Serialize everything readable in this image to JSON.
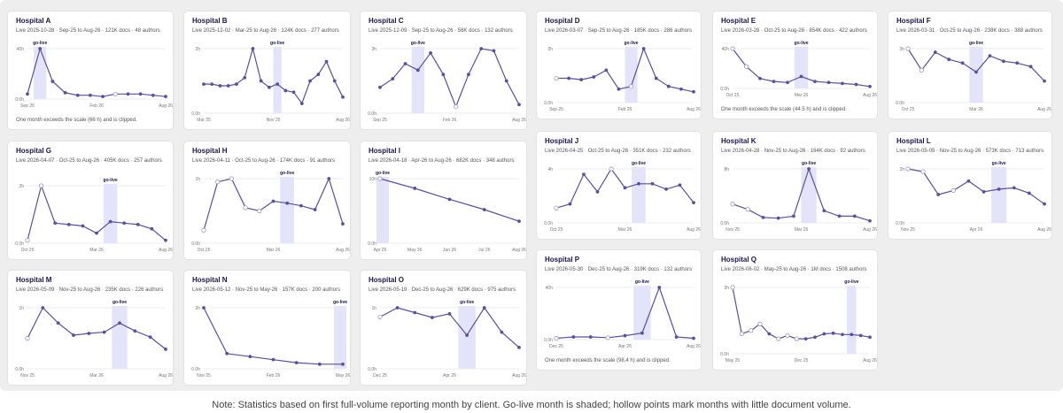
{
  "footnote": "Note: Statistics based on first full-volume reporting month by client. Go-live month is shaded; hollow points mark months with little document volume.",
  "golive_label": "go-live",
  "colors": {
    "line": "#5a4fa3",
    "shade": "#e3e3fa",
    "grid": "#dedede",
    "text": "#1a1450"
  },
  "chart_data": [
    {
      "type": "line",
      "title": "Hospital A",
      "subtitle": "Live 2025-10-28 · Sep-25 to Aug-26 · 121K docs · 48 authors",
      "note": "One month exceeds the scale (66 h) and is clipped.",
      "x": [
        "Sep-25",
        "Oct-25",
        "Nov-25",
        "Dec-25",
        "Jan-26",
        "Feb-26",
        "Mar-26",
        "Apr-26",
        "May-26",
        "Jun-26",
        "Jul-26",
        "Aug-26"
      ],
      "xticks": [
        "Sep 25",
        "Feb 26",
        "Aug 26"
      ],
      "yticks": [
        "0.0h",
        "40h"
      ],
      "ylim": [
        0,
        40
      ],
      "golive_index": 1,
      "values": [
        4,
        40,
        14,
        5,
        3,
        3,
        2,
        4,
        4,
        4,
        3,
        2
      ],
      "hollow": [
        7
      ]
    },
    {
      "type": "line",
      "title": "Hospital B",
      "subtitle": "Live 2025-12-02 · Mar-25 to Aug-26 · 124K docs · 277 authors",
      "note": "",
      "x": [
        "Mar-25",
        "Apr-25",
        "May-25",
        "Jun-25",
        "Jul-25",
        "Aug-25",
        "Sep-25",
        "Oct-25",
        "Nov-25",
        "Dec-25",
        "Jan-26",
        "Feb-26",
        "Mar-26",
        "Apr-26",
        "May-26",
        "Jun-26",
        "Jul-26",
        "Aug-26"
      ],
      "xticks": [
        "Mar 25",
        "Nov 25",
        "Aug 26"
      ],
      "yticks": [
        "0.0h",
        "2h"
      ],
      "ylim": [
        0,
        2
      ],
      "golive_index": 9,
      "values": [
        0.9,
        0.9,
        0.85,
        0.85,
        0.9,
        1.1,
        2.0,
        1.0,
        0.8,
        0.9,
        0.7,
        0.65,
        0.3,
        1.0,
        1.2,
        1.6,
        1.0,
        0.5
      ],
      "hollow": []
    },
    {
      "type": "line",
      "title": "Hospital C",
      "subtitle": "Live 2025-12-09 · Sep-25 to Aug-26 · 56K docs · 132 authors",
      "note": "",
      "x": [
        "Sep-25",
        "Oct-25",
        "Nov-25",
        "Dec-25",
        "Jan-26",
        "Feb-26",
        "Mar-26",
        "Apr-26",
        "May-26",
        "Jun-26",
        "Jul-26",
        "Aug-26"
      ],
      "xticks": [
        "Sep 25",
        "Feb 26",
        "Aug 26"
      ],
      "yticks": [
        "0.0h",
        "3h"
      ],
      "ylim": [
        0,
        3
      ],
      "golive_index": 3,
      "values": [
        1.2,
        1.6,
        2.3,
        2.0,
        2.8,
        1.8,
        0.3,
        1.8,
        3.0,
        2.9,
        1.5,
        0.4
      ],
      "hollow": [
        6
      ]
    },
    {
      "type": "line",
      "title": "Hospital D",
      "subtitle": "Live 2026-03-07 · Sep-25 to Aug-26 · 185K docs · 286 authors",
      "note": "",
      "x": [
        "Sep-25",
        "Oct-25",
        "Nov-25",
        "Dec-25",
        "Jan-26",
        "Feb-26",
        "Mar-26",
        "Apr-26",
        "May-26",
        "Jun-26",
        "Jul-26",
        "Aug-26"
      ],
      "xticks": [
        "Sep 25",
        "Feb 26",
        "Aug 26"
      ],
      "yticks": [
        "0.0h",
        "2h"
      ],
      "ylim": [
        0,
        2
      ],
      "golive_index": 6,
      "values": [
        0.9,
        0.9,
        0.85,
        0.95,
        1.2,
        0.5,
        0.6,
        2.0,
        0.9,
        0.6,
        0.5,
        0.4
      ],
      "hollow": [
        0,
        6
      ]
    },
    {
      "type": "line",
      "title": "Hospital E",
      "subtitle": "Live 2026-03-28 · Oct-25 to Aug-26 · 854K docs · 422 authors",
      "note": "One month exceeds the scale (44.5 h) and is clipped.",
      "x": [
        "Oct-25",
        "Nov-25",
        "Dec-25",
        "Jan-26",
        "Feb-26",
        "Mar-26",
        "Apr-26",
        "May-26",
        "Jun-26",
        "Jul-26",
        "Aug-26"
      ],
      "xticks": [
        "Oct 25",
        "Mar 26",
        "Aug 26"
      ],
      "yticks": [
        "0.0h",
        "40h"
      ],
      "ylim": [
        0,
        40
      ],
      "golive_index": 5,
      "values": [
        40,
        22,
        10,
        7,
        6,
        12,
        7,
        6,
        5,
        4,
        2
      ],
      "hollow": [
        0,
        1
      ]
    },
    {
      "type": "line",
      "title": "Hospital F",
      "subtitle": "Live 2026-03-31 · Oct-25 to Aug-26 · 238K docs · 388 authors",
      "note": "",
      "x": [
        "Oct-25",
        "Nov-25",
        "Dec-25",
        "Jan-26",
        "Feb-26",
        "Mar-26",
        "Apr-26",
        "May-26",
        "Jun-26",
        "Jul-26",
        "Aug-26"
      ],
      "xticks": [
        "Oct 25",
        "Mar 26",
        "Aug 26"
      ],
      "yticks": [
        "0.0h",
        "3h"
      ],
      "ylim": [
        0,
        3
      ],
      "golive_index": 5,
      "values": [
        3.0,
        1.8,
        2.8,
        2.4,
        2.2,
        1.7,
        2.6,
        2.3,
        2.2,
        2.0,
        1.2
      ],
      "hollow": [
        0,
        1
      ]
    },
    {
      "type": "line",
      "title": "Hospital G",
      "subtitle": "Live 2026-04-07 · Oct-25 to Aug-26 · 405K docs · 257 authors",
      "note": "",
      "x": [
        "Oct-25",
        "Nov-25",
        "Dec-25",
        "Jan-26",
        "Feb-26",
        "Mar-26",
        "Apr-26",
        "May-26",
        "Jun-26",
        "Jul-26",
        "Aug-26"
      ],
      "xticks": [
        "Oct 25",
        "Mar 26",
        "Aug 26"
      ],
      "yticks": [
        "0.0h",
        "2h"
      ],
      "ylim": [
        0,
        2
      ],
      "golive_index": 6,
      "values": [
        0.1,
        2.0,
        0.7,
        0.65,
        0.6,
        0.35,
        0.75,
        0.7,
        0.65,
        0.5,
        0.1
      ],
      "hollow": [
        0,
        1
      ]
    },
    {
      "type": "line",
      "title": "Hospital H",
      "subtitle": "Live 2026-04-11 · Oct-25 to Aug-26 · 174K docs · 91 authors",
      "note": "",
      "x": [
        "Oct-25",
        "Nov-25",
        "Dec-25",
        "Jan-26",
        "Feb-26",
        "Mar-26",
        "Apr-26",
        "May-26",
        "Jun-26",
        "Jul-26",
        "Aug-26"
      ],
      "xticks": [
        "Oct 25",
        "Mar 26",
        "Aug 26"
      ],
      "yticks": [
        "0.0h",
        "1h"
      ],
      "ylim": [
        0,
        1
      ],
      "golive_index": 6,
      "values": [
        0.2,
        0.95,
        1.05,
        0.55,
        0.5,
        0.65,
        0.62,
        0.58,
        0.52,
        1.0,
        0.3
      ],
      "hollow": [
        0,
        1,
        2,
        3,
        4
      ]
    },
    {
      "type": "line",
      "title": "Hospital I",
      "subtitle": "Live 2026-04-18 · Apr-26 to Aug-26 · 682K docs · 348 authors",
      "note": "",
      "x": [
        "Apr-26",
        "May-26",
        "Jun-26",
        "Jul-26",
        "Aug-26"
      ],
      "xticks": [
        "Apr 26",
        "May 26",
        "Jun 26",
        "Jul 26",
        "Aug 26"
      ],
      "yticks": [
        "0.0h",
        "10h"
      ],
      "ylim": [
        0,
        10
      ],
      "golive_index": 0,
      "values": [
        10,
        8.5,
        6.8,
        5.2,
        3.4
      ],
      "hollow": [
        0
      ]
    },
    {
      "type": "line",
      "title": "Hospital J",
      "subtitle": "Live 2026-04-25 · Oct-25 to Aug-26 · 351K docs · 232 authors",
      "note": "",
      "x": [
        "Oct-25",
        "Nov-25",
        "Dec-25",
        "Jan-26",
        "Feb-26",
        "Mar-26",
        "Apr-26",
        "May-26",
        "Jun-26",
        "Jul-26",
        "Aug-26"
      ],
      "xticks": [
        "Oct 25",
        "Mar 26",
        "Aug 26"
      ],
      "yticks": [
        "0.0h",
        "4h"
      ],
      "ylim": [
        0,
        4
      ],
      "golive_index": 6,
      "values": [
        1.1,
        1.4,
        3.6,
        2.3,
        4.0,
        2.6,
        2.9,
        2.9,
        2.5,
        2.8,
        1.5
      ],
      "hollow": [
        0,
        4
      ]
    },
    {
      "type": "line",
      "title": "Hospital K",
      "subtitle": "Live 2026-04-28 · Nov-25 to Aug-26 · 164K docs · 92 authors",
      "note": "",
      "x": [
        "Nov-25",
        "Dec-25",
        "Jan-26",
        "Feb-26",
        "Mar-26",
        "Apr-26",
        "May-26",
        "Jun-26",
        "Jul-26",
        "Aug-26"
      ],
      "xticks": [
        "Nov 25",
        "Mar 26",
        "Aug 26"
      ],
      "yticks": [
        "0.0h",
        "8h"
      ],
      "ylim": [
        0,
        8
      ],
      "golive_index": 5,
      "values": [
        2.8,
        2.0,
        0.8,
        0.7,
        1.0,
        8.0,
        1.8,
        1.0,
        1.0,
        0.3
      ],
      "hollow": [
        0,
        1
      ]
    },
    {
      "type": "line",
      "title": "Hospital L",
      "subtitle": "Live 2026-05-05 · Nov-25 to Aug-26 · 573K docs · 713 authors",
      "note": "",
      "x": [
        "Nov-25",
        "Dec-25",
        "Jan-26",
        "Feb-26",
        "Mar-26",
        "Apr-26",
        "May-26",
        "Jun-26",
        "Jul-26",
        "Aug-26"
      ],
      "xticks": [
        "Nov 25",
        "Apr 26",
        "Aug 26"
      ],
      "yticks": [
        "0.0h",
        "2h"
      ],
      "ylim": [
        0,
        2
      ],
      "golive_index": 6,
      "values": [
        2.0,
        1.9,
        1.05,
        1.2,
        1.55,
        1.15,
        1.25,
        1.3,
        1.1,
        0.7
      ],
      "hollow": [
        0,
        1,
        3
      ]
    },
    {
      "type": "line",
      "title": "Hospital M",
      "subtitle": "Live 2026-05-09 · Nov-25 to Aug-26 · 235K docs · 226 authors",
      "note": "",
      "x": [
        "Nov-25",
        "Dec-25",
        "Jan-26",
        "Feb-26",
        "Mar-26",
        "Apr-26",
        "May-26",
        "Jun-26",
        "Jul-26",
        "Aug-26"
      ],
      "xticks": [
        "Nov 25",
        "Mar 26",
        "Aug 26"
      ],
      "yticks": [
        "0.0h",
        "1h"
      ],
      "ylim": [
        0,
        1
      ],
      "golive_index": 6,
      "values": [
        0.5,
        1.0,
        0.75,
        0.55,
        0.58,
        0.6,
        0.75,
        0.62,
        0.52,
        0.32
      ],
      "hollow": [
        0
      ]
    },
    {
      "type": "line",
      "title": "Hospital N",
      "subtitle": "Live 2026-05-12 · Nov-25 to May-26 · 157K docs · 200 authors",
      "note": "",
      "x": [
        "Nov-25",
        "Dec-25",
        "Jan-26",
        "Feb-26",
        "Mar-26",
        "Apr-26",
        "May-26"
      ],
      "xticks": [
        "Nov 25",
        "Feb 26",
        "May 26"
      ],
      "yticks": [
        "0.0h",
        "2h"
      ],
      "ylim": [
        0,
        2
      ],
      "golive_index": 6,
      "values": [
        2.0,
        0.5,
        0.4,
        0.3,
        0.2,
        0.15,
        0.15
      ],
      "hollow": []
    },
    {
      "type": "line",
      "title": "Hospital O",
      "subtitle": "Live 2026-05-19 · Dec-25 to Aug-26 · 629K docs · 975 authors",
      "note": "",
      "x": [
        "Dec-25",
        "Jan-26",
        "Feb-26",
        "Mar-26",
        "Apr-26",
        "May-26",
        "Jun-26",
        "Jul-26",
        "Aug-26"
      ],
      "xticks": [
        "Dec 25",
        "Apr 26",
        "Aug 26"
      ],
      "yticks": [
        "0.0h",
        "1h"
      ],
      "ylim": [
        0,
        1
      ],
      "golive_index": 5,
      "values": [
        0.85,
        1.0,
        0.92,
        0.84,
        0.9,
        0.55,
        1.0,
        0.6,
        0.35
      ],
      "hollow": [
        0
      ]
    },
    {
      "type": "line",
      "title": "Hospital P",
      "subtitle": "Live 2026-05-30 · Dec-25 to Aug-26 · 319K docs · 132 authors",
      "note": "One month exceeds the scale (98.4 h) and is clipped.",
      "x": [
        "Dec-25",
        "Jan-26",
        "Feb-26",
        "Mar-26",
        "Apr-26",
        "May-26",
        "Jun-26",
        "Jul-26",
        "Aug-26"
      ],
      "xticks": [
        "Dec 25",
        "Apr 26",
        "Aug 26"
      ],
      "yticks": [
        "0.0h",
        "40h"
      ],
      "ylim": [
        0,
        40
      ],
      "golive_index": 5,
      "values": [
        1,
        2,
        2,
        1.5,
        3,
        5,
        40,
        2,
        1
      ],
      "hollow": [
        0,
        3
      ]
    },
    {
      "type": "line",
      "title": "Hospital Q",
      "subtitle": "Live 2026-06-02 · May-25 to Aug-26 · 1M docs · 1508 authors",
      "note": "",
      "x": [
        "May-25",
        "Jun-25",
        "Jul-25",
        "Aug-25",
        "Sep-25",
        "Oct-25",
        "Nov-25",
        "Dec-25",
        "Jan-26",
        "Feb-26",
        "Mar-26",
        "Apr-26",
        "May-26",
        "Jun-26",
        "Jul-26",
        "Aug-26"
      ],
      "xticks": [
        "May 25",
        "Dec 25",
        "Aug 26"
      ],
      "yticks": [
        "0.0h",
        "2h"
      ],
      "ylim": [
        0,
        2
      ],
      "golive_index": 13,
      "values": [
        2.0,
        0.6,
        0.7,
        0.9,
        0.6,
        0.45,
        0.55,
        0.45,
        0.45,
        0.5,
        0.6,
        0.62,
        0.58,
        0.58,
        0.55,
        0.5
      ],
      "hollow": [
        0,
        1,
        2,
        3,
        5,
        6,
        7
      ]
    }
  ]
}
